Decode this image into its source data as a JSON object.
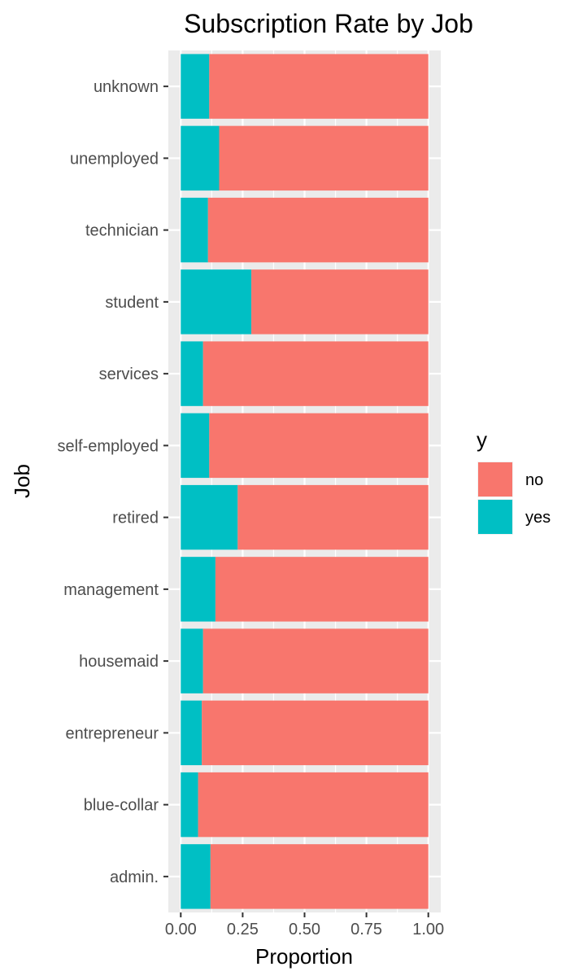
{
  "chart_data": {
    "type": "bar",
    "orientation": "horizontal",
    "stacked": true,
    "title": "Subscription Rate by Job",
    "xlabel": "Proportion",
    "ylabel": "Job",
    "xlim": [
      0,
      1
    ],
    "x_ticks": [
      "0.00",
      "0.25",
      "0.50",
      "0.75",
      "1.00"
    ],
    "x_tick_values": [
      0,
      0.25,
      0.5,
      0.75,
      1
    ],
    "categories": [
      "admin.",
      "blue-collar",
      "entrepreneur",
      "housemaid",
      "management",
      "retired",
      "self-employed",
      "services",
      "student",
      "technician",
      "unemployed",
      "unknown"
    ],
    "series": [
      {
        "name": "no",
        "color": "#F8766D",
        "values": [
          0.88,
          0.93,
          0.915,
          0.91,
          0.86,
          0.77,
          0.885,
          0.91,
          0.715,
          0.89,
          0.845,
          0.885
        ]
      },
      {
        "name": "yes",
        "color": "#00BFC4",
        "values": [
          0.12,
          0.07,
          0.085,
          0.09,
          0.14,
          0.23,
          0.115,
          0.09,
          0.285,
          0.11,
          0.155,
          0.115
        ]
      }
    ],
    "legend": {
      "title": "y",
      "position": "right",
      "entries": [
        "no",
        "yes"
      ]
    },
    "grid": true,
    "panel_background": "#EBEBEB",
    "grid_color": "#FFFFFF"
  }
}
